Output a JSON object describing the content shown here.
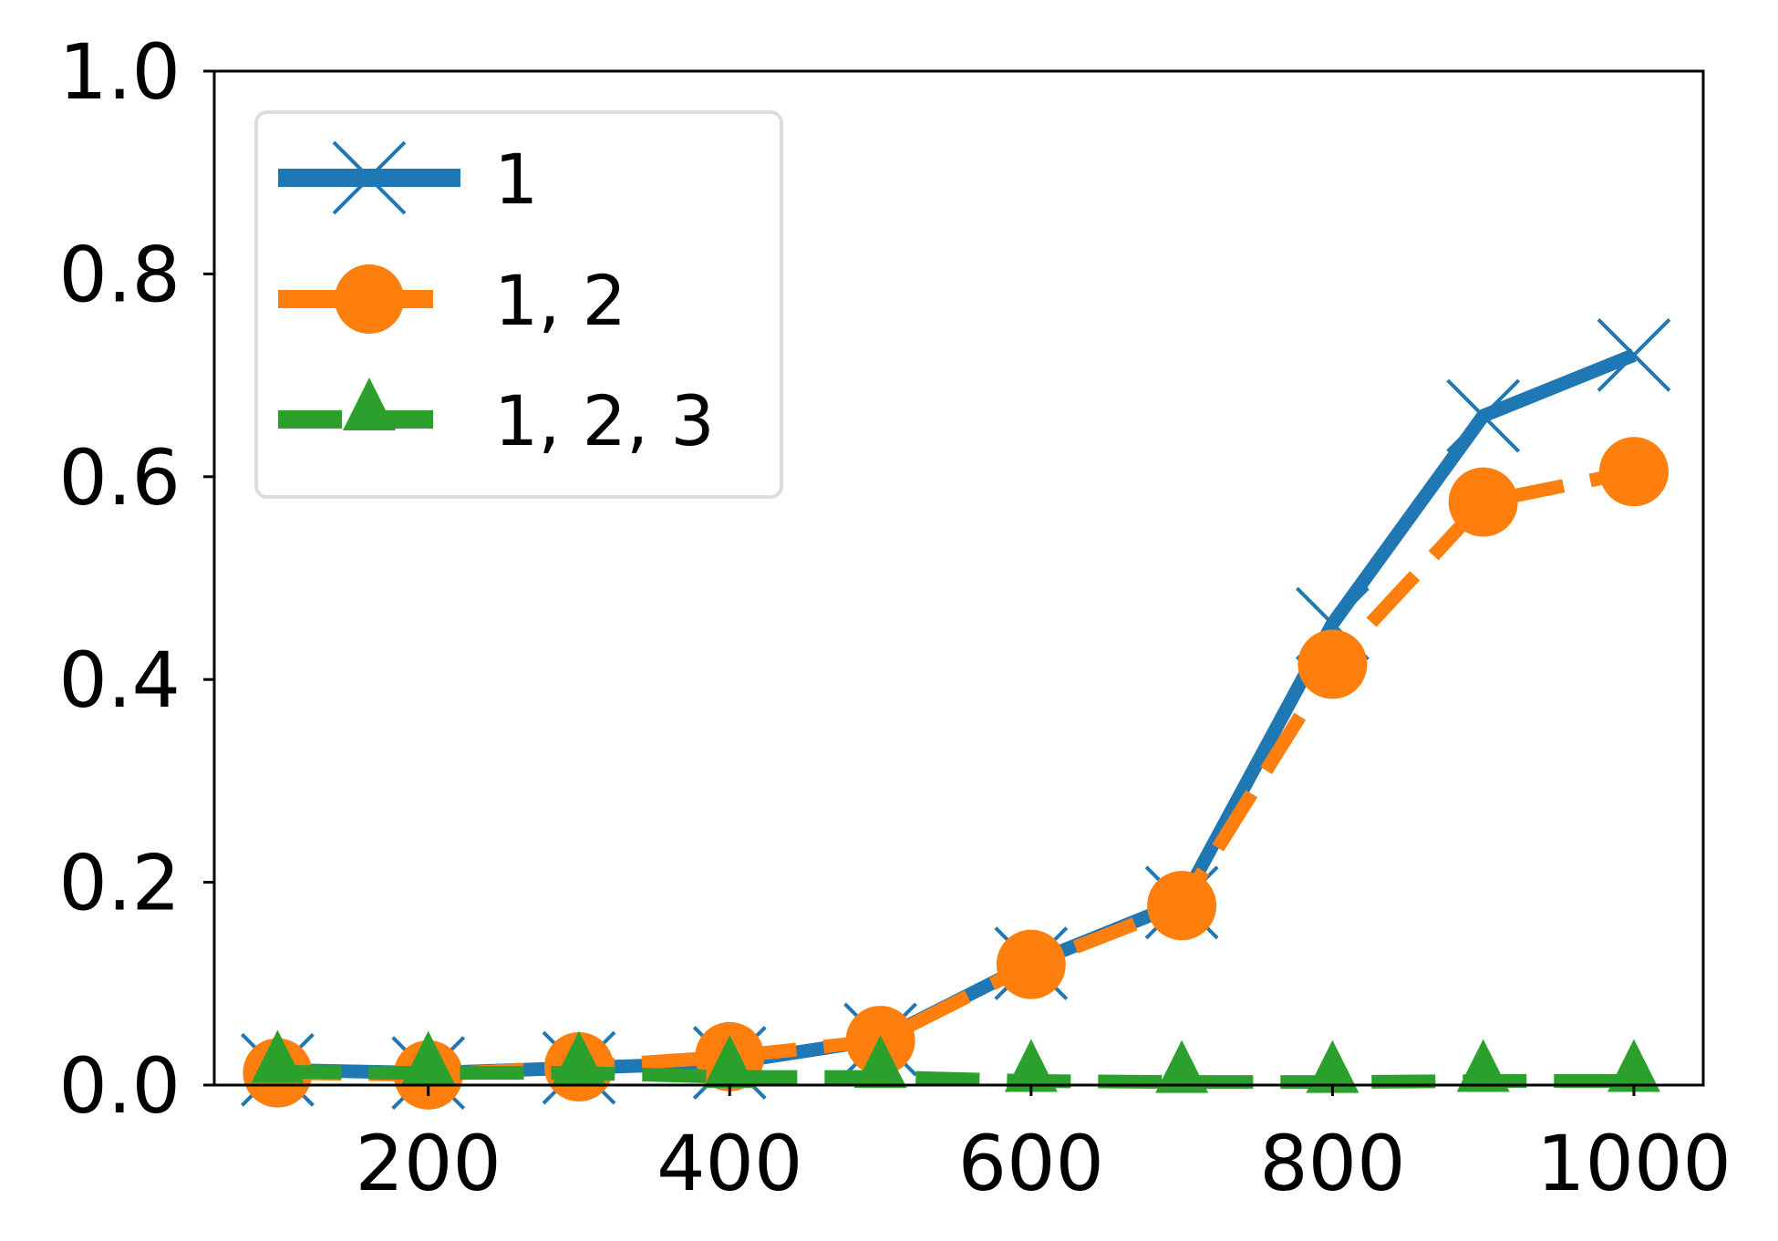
{
  "chart_data": {
    "type": "line",
    "title": "",
    "xlabel": "",
    "ylabel": "",
    "xlim": [
      58,
      1046
    ],
    "ylim": [
      0.0,
      1.0
    ],
    "x_ticks": [
      200,
      400,
      600,
      800,
      1000
    ],
    "x_tick_labels": [
      "200",
      "400",
      "600",
      "800",
      "1000"
    ],
    "y_ticks": [
      0.0,
      0.2,
      0.4,
      0.6,
      0.8,
      1.0
    ],
    "y_tick_labels": [
      "0.0",
      "0.2",
      "0.4",
      "0.6",
      "0.8",
      "1.0"
    ],
    "grid": false,
    "legend_position": "top-left",
    "x": [
      100,
      200,
      300,
      400,
      500,
      600,
      700,
      800,
      900,
      1000
    ],
    "series": [
      {
        "name": "1",
        "color": "#1f77b4",
        "marker": "x",
        "line_style": "solid",
        "values": [
          0.015,
          0.012,
          0.017,
          0.022,
          0.045,
          0.12,
          0.18,
          0.455,
          0.66,
          0.72
        ]
      },
      {
        "name": "1, 2",
        "color": "#ff7f0e",
        "marker": "circle",
        "line_style": "dashed",
        "values": [
          0.012,
          0.01,
          0.018,
          0.028,
          0.044,
          0.119,
          0.177,
          0.415,
          0.575,
          0.605
        ]
      },
      {
        "name": "1, 2, 3",
        "color": "#2ca02c",
        "marker": "triangle",
        "line_style": "dashed",
        "values": [
          0.013,
          0.012,
          0.012,
          0.008,
          0.008,
          0.004,
          0.003,
          0.003,
          0.004,
          0.004
        ]
      }
    ]
  }
}
